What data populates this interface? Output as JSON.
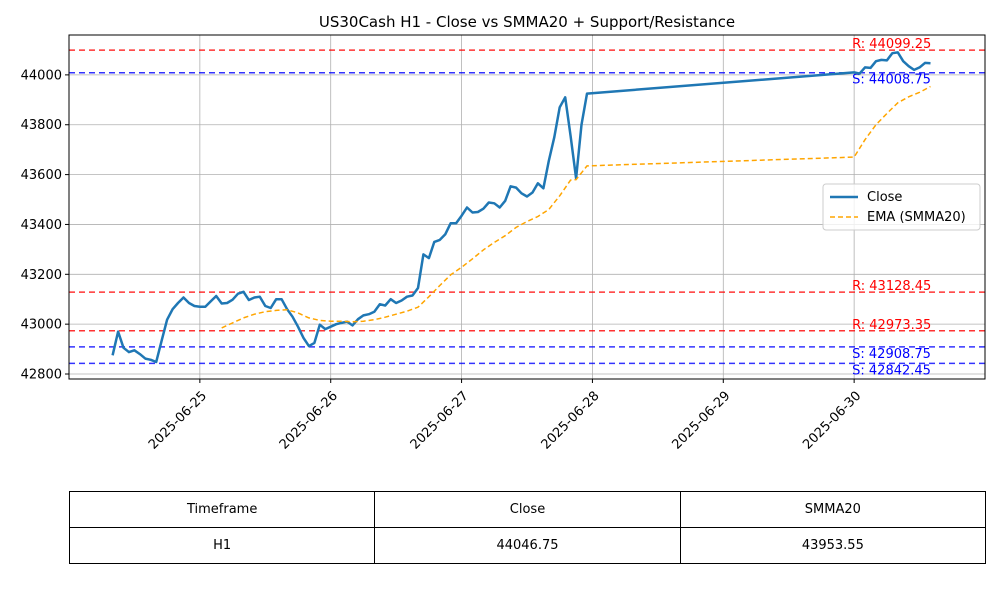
{
  "chart_data": {
    "type": "line",
    "title": "US30Cash H1 - Close vs SMMA20 + Support/Resistance",
    "xlabel": "",
    "ylabel": "",
    "x_range": [
      "2025-06-24",
      "2025-07-01"
    ],
    "ylim": [
      42780,
      44160
    ],
    "y_ticks": [
      42800,
      43000,
      43200,
      43400,
      43600,
      43800,
      44000
    ],
    "x_ticks": [
      "2025-06-25",
      "2025-06-26",
      "2025-06-27",
      "2025-06-28",
      "2025-06-29",
      "2025-06-30"
    ],
    "grid": true,
    "legend_position": "center-right",
    "series": [
      {
        "name": "Close",
        "color": "#1f77b4",
        "style": "solid",
        "points": [
          [
            "2025-06-24 08:00",
            42875
          ],
          [
            "2025-06-24 09:00",
            42970
          ],
          [
            "2025-06-24 10:00",
            42905
          ],
          [
            "2025-06-24 11:00",
            42888
          ],
          [
            "2025-06-24 12:00",
            42895
          ],
          [
            "2025-06-24 13:00",
            42880
          ],
          [
            "2025-06-24 14:00",
            42862
          ],
          [
            "2025-06-24 15:00",
            42857
          ],
          [
            "2025-06-24 16:00",
            42848
          ],
          [
            "2025-06-24 17:00",
            42935
          ],
          [
            "2025-06-24 18:00",
            43018
          ],
          [
            "2025-06-24 19:00",
            43060
          ],
          [
            "2025-06-24 20:00",
            43085
          ],
          [
            "2025-06-24 21:00",
            43107
          ],
          [
            "2025-06-24 22:00",
            43085
          ],
          [
            "2025-06-24 23:00",
            43073
          ],
          [
            "2025-06-25 00:00",
            43070
          ],
          [
            "2025-06-25 01:00",
            43070
          ],
          [
            "2025-06-25 02:00",
            43092
          ],
          [
            "2025-06-25 03:00",
            43113
          ],
          [
            "2025-06-25 04:00",
            43083
          ],
          [
            "2025-06-25 05:00",
            43085
          ],
          [
            "2025-06-25 06:00",
            43098
          ],
          [
            "2025-06-25 07:00",
            43122
          ],
          [
            "2025-06-25 08:00",
            43130
          ],
          [
            "2025-06-25 09:00",
            43097
          ],
          [
            "2025-06-25 10:00",
            43107
          ],
          [
            "2025-06-25 11:00",
            43110
          ],
          [
            "2025-06-25 12:00",
            43073
          ],
          [
            "2025-06-25 13:00",
            43065
          ],
          [
            "2025-06-25 14:00",
            43100
          ],
          [
            "2025-06-25 15:00",
            43100
          ],
          [
            "2025-06-25 16:00",
            43060
          ],
          [
            "2025-06-25 17:00",
            43030
          ],
          [
            "2025-06-25 18:00",
            42990
          ],
          [
            "2025-06-25 19:00",
            42945
          ],
          [
            "2025-06-25 20:00",
            42912
          ],
          [
            "2025-06-25 21:00",
            42925
          ],
          [
            "2025-06-25 22:00",
            42998
          ],
          [
            "2025-06-25 23:00",
            42980
          ],
          [
            "2025-06-26 00:00",
            42990
          ],
          [
            "2025-06-26 01:00",
            43000
          ],
          [
            "2025-06-26 02:00",
            43005
          ],
          [
            "2025-06-26 03:00",
            43010
          ],
          [
            "2025-06-26 04:00",
            42995
          ],
          [
            "2025-06-26 05:00",
            43020
          ],
          [
            "2025-06-26 06:00",
            43035
          ],
          [
            "2025-06-26 07:00",
            43040
          ],
          [
            "2025-06-26 08:00",
            43050
          ],
          [
            "2025-06-26 09:00",
            43080
          ],
          [
            "2025-06-26 10:00",
            43075
          ],
          [
            "2025-06-26 11:00",
            43100
          ],
          [
            "2025-06-26 12:00",
            43085
          ],
          [
            "2025-06-26 13:00",
            43095
          ],
          [
            "2025-06-26 14:00",
            43110
          ],
          [
            "2025-06-26 15:00",
            43115
          ],
          [
            "2025-06-26 16:00",
            43145
          ],
          [
            "2025-06-26 17:00",
            43280
          ],
          [
            "2025-06-26 18:00",
            43265
          ],
          [
            "2025-06-26 19:00",
            43330
          ],
          [
            "2025-06-26 20:00",
            43338
          ],
          [
            "2025-06-26 21:00",
            43360
          ],
          [
            "2025-06-26 22:00",
            43405
          ],
          [
            "2025-06-26 23:00",
            43405
          ],
          [
            "2025-06-27 00:00",
            43435
          ],
          [
            "2025-06-27 01:00",
            43468
          ],
          [
            "2025-06-27 02:00",
            43448
          ],
          [
            "2025-06-27 03:00",
            43450
          ],
          [
            "2025-06-27 04:00",
            43463
          ],
          [
            "2025-06-27 05:00",
            43488
          ],
          [
            "2025-06-27 06:00",
            43485
          ],
          [
            "2025-06-27 07:00",
            43468
          ],
          [
            "2025-06-27 08:00",
            43495
          ],
          [
            "2025-06-27 09:00",
            43553
          ],
          [
            "2025-06-27 10:00",
            43548
          ],
          [
            "2025-06-27 11:00",
            43525
          ],
          [
            "2025-06-27 12:00",
            43512
          ],
          [
            "2025-06-27 13:00",
            43528
          ],
          [
            "2025-06-27 14:00",
            43565
          ],
          [
            "2025-06-27 15:00",
            43545
          ],
          [
            "2025-06-27 16:00",
            43655
          ],
          [
            "2025-06-27 17:00",
            43750
          ],
          [
            "2025-06-27 18:00",
            43870
          ],
          [
            "2025-06-27 19:00",
            43910
          ],
          [
            "2025-06-27 20:00",
            43755
          ],
          [
            "2025-06-27 21:00",
            43585
          ],
          [
            "2025-06-27 22:00",
            43800
          ],
          [
            "2025-06-27 23:00",
            43925
          ],
          [
            "2025-06-30 00:00",
            44010
          ],
          [
            "2025-06-30 01:00",
            44005
          ],
          [
            "2025-06-30 02:00",
            44030
          ],
          [
            "2025-06-30 03:00",
            44028
          ],
          [
            "2025-06-30 04:00",
            44055
          ],
          [
            "2025-06-30 05:00",
            44060
          ],
          [
            "2025-06-30 06:00",
            44058
          ],
          [
            "2025-06-30 07:00",
            44087
          ],
          [
            "2025-06-30 08:00",
            44090
          ],
          [
            "2025-06-30 09:00",
            44055
          ],
          [
            "2025-06-30 10:00",
            44035
          ],
          [
            "2025-06-30 11:00",
            44020
          ],
          [
            "2025-06-30 12:00",
            44030
          ],
          [
            "2025-06-30 13:00",
            44048
          ],
          [
            "2025-06-30 14:00",
            44046.75
          ]
        ]
      },
      {
        "name": "EMA (SMMA20)",
        "color": "#ffa500",
        "style": "dashed",
        "points": [
          [
            "2025-06-25 04:00",
            42985
          ],
          [
            "2025-06-25 06:00",
            43005
          ],
          [
            "2025-06-25 08:00",
            43025
          ],
          [
            "2025-06-25 10:00",
            43040
          ],
          [
            "2025-06-25 12:00",
            43050
          ],
          [
            "2025-06-25 14:00",
            43055
          ],
          [
            "2025-06-25 16:00",
            43058
          ],
          [
            "2025-06-25 18:00",
            43045
          ],
          [
            "2025-06-25 20:00",
            43025
          ],
          [
            "2025-06-25 22:00",
            43015
          ],
          [
            "2025-06-26 00:00",
            43012
          ],
          [
            "2025-06-26 02:00",
            43012
          ],
          [
            "2025-06-26 04:00",
            43010
          ],
          [
            "2025-06-26 06:00",
            43012
          ],
          [
            "2025-06-26 08:00",
            43018
          ],
          [
            "2025-06-26 10:00",
            43028
          ],
          [
            "2025-06-26 12:00",
            43040
          ],
          [
            "2025-06-26 14:00",
            43052
          ],
          [
            "2025-06-26 16:00",
            43068
          ],
          [
            "2025-06-26 18:00",
            43110
          ],
          [
            "2025-06-26 20:00",
            43155
          ],
          [
            "2025-06-26 22:00",
            43198
          ],
          [
            "2025-06-27 00:00",
            43228
          ],
          [
            "2025-06-27 02:00",
            43262
          ],
          [
            "2025-06-27 04:00",
            43298
          ],
          [
            "2025-06-27 06:00",
            43328
          ],
          [
            "2025-06-27 08:00",
            43355
          ],
          [
            "2025-06-27 10:00",
            43388
          ],
          [
            "2025-06-27 12:00",
            43412
          ],
          [
            "2025-06-27 14:00",
            43432
          ],
          [
            "2025-06-27 16:00",
            43460
          ],
          [
            "2025-06-27 18:00",
            43515
          ],
          [
            "2025-06-27 20:00",
            43578
          ],
          [
            "2025-06-27 21:00",
            43580
          ],
          [
            "2025-06-27 23:00",
            43635
          ],
          [
            "2025-06-30 00:00",
            43670
          ],
          [
            "2025-06-30 02:00",
            43740
          ],
          [
            "2025-06-30 04:00",
            43800
          ],
          [
            "2025-06-30 06:00",
            43845
          ],
          [
            "2025-06-30 08:00",
            43888
          ],
          [
            "2025-06-30 10:00",
            43912
          ],
          [
            "2025-06-30 12:00",
            43930
          ],
          [
            "2025-06-30 14:00",
            43953.55
          ]
        ]
      }
    ],
    "levels": [
      {
        "kind": "resistance",
        "value": 44099.25,
        "label": "R: 44099.25",
        "color": "#ff0000"
      },
      {
        "kind": "support",
        "value": 44008.75,
        "label": "S: 44008.75",
        "color": "#0000ff"
      },
      {
        "kind": "resistance",
        "value": 43128.45,
        "label": "R: 43128.45",
        "color": "#ff0000"
      },
      {
        "kind": "resistance",
        "value": 42973.35,
        "label": "R: 42973.35",
        "color": "#ff0000"
      },
      {
        "kind": "support",
        "value": 42908.75,
        "label": "S: 42908.75",
        "color": "#0000ff"
      },
      {
        "kind": "support",
        "value": 42842.45,
        "label": "S: 42842.45",
        "color": "#0000ff"
      }
    ]
  },
  "table": {
    "headers": [
      "Timeframe",
      "Close",
      "SMMA20"
    ],
    "rows": [
      [
        "H1",
        "44046.75",
        "43953.55"
      ]
    ]
  }
}
